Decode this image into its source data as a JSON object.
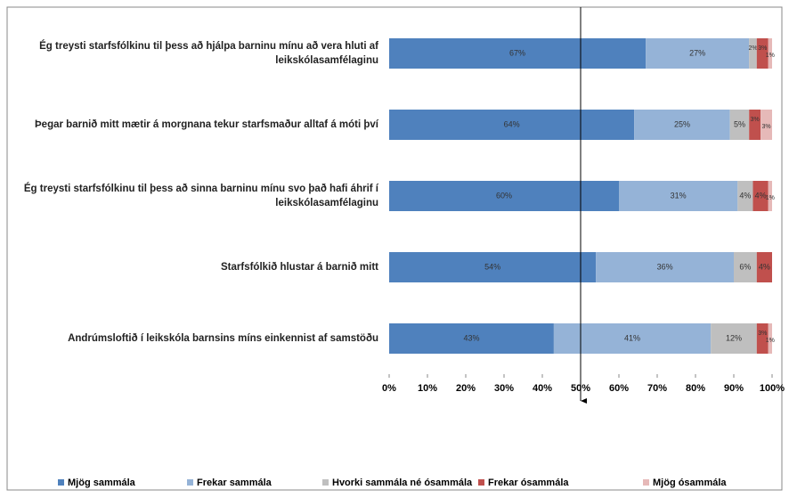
{
  "chart_data": {
    "type": "stacked-bar-horizontal",
    "categories": [
      "Ég treysti starfsfólkinu til þess að hjálpa barninu mínu að vera hluti af leikskólasamfélaginu",
      "Þegar barnið mitt mætir á morgnana tekur starfsmaður alltaf á móti því",
      "Ég treysti starfsfólkinu til þess að sinna barninu mínu svo það hafi áhrif í leikskólasamfélaginu",
      "Starfsfólkið hlustar á barnið mitt",
      "Andrúmsloftið í leikskóla barnsins míns einkennist af samstöðu"
    ],
    "series": [
      {
        "name": "Mjög sammála",
        "color": "#4f81bd",
        "values": [
          67,
          64,
          60,
          54,
          43
        ],
        "value_labels": [
          "67%",
          "64%",
          "60%",
          "54%",
          "43%"
        ]
      },
      {
        "name": "Frekar sammála",
        "color": "#95b3d7",
        "values": [
          27,
          25,
          31,
          36,
          41
        ],
        "value_labels": [
          "27%",
          "25%",
          "31%",
          "36%",
          "41%"
        ]
      },
      {
        "name": "Hvorki sammála né ósammála",
        "color": "#bfbfbf",
        "values": [
          2,
          5,
          4,
          6,
          12
        ],
        "value_labels": [
          "2%",
          "5%",
          "4%",
          "6%",
          "12%"
        ]
      },
      {
        "name": "Frekar ósammála",
        "color": "#c0504d",
        "values": [
          3,
          3,
          4,
          4,
          3
        ],
        "value_labels": [
          "3%",
          "3%",
          "4%",
          "4%",
          "3%"
        ]
      },
      {
        "name": "Mjög ósammála",
        "color": "#e6b9b8",
        "values": [
          1,
          3,
          1,
          null,
          1
        ],
        "value_labels": [
          "1%",
          "3%",
          "1%",
          null,
          "1%"
        ]
      }
    ],
    "xlim": [
      0,
      100
    ],
    "xticks": [
      {
        "value": 0,
        "label": "0%"
      },
      {
        "value": 10,
        "label": "10%"
      },
      {
        "value": 20,
        "label": "20%"
      },
      {
        "value": 30,
        "label": "30%"
      },
      {
        "value": 40,
        "label": "40%"
      },
      {
        "value": 50,
        "label": "50%"
      },
      {
        "value": 60,
        "label": "60%"
      },
      {
        "value": 70,
        "label": "70%"
      },
      {
        "value": 80,
        "label": "80%"
      },
      {
        "value": 90,
        "label": "90%"
      },
      {
        "value": 100,
        "label": "100%"
      }
    ],
    "reference_x": 50,
    "legend": "bottom"
  }
}
